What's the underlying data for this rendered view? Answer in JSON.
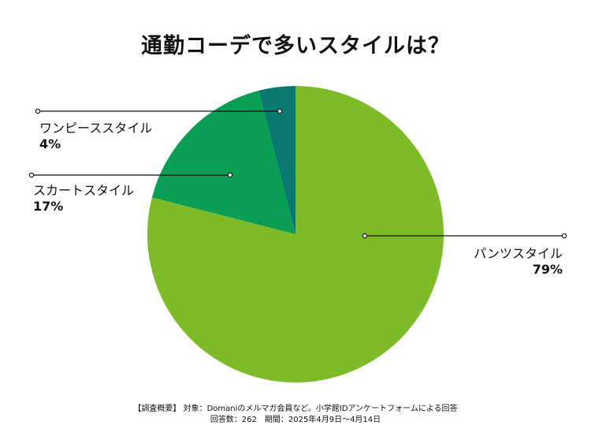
{
  "title": "通勤コーデで多いスタイルは？",
  "chart_data": {
    "type": "pie",
    "start": "top",
    "direction": "clockwise",
    "slices": [
      {
        "label": "パンツスタイル",
        "value": 79,
        "display": "79%",
        "color": "#7dbb28"
      },
      {
        "label": "スカートスタイル",
        "value": 17,
        "display": "17%",
        "color": "#0a9e55"
      },
      {
        "label": "ワンピーススタイル",
        "value": 4,
        "display": "4%",
        "color": "#0a7a6e"
      }
    ]
  },
  "footnote": {
    "line1": "【調査概要】 対象：Domaniのメルマガ会員など。小学館IDアンケートフォームによる回答",
    "line2": "回答数：262　期間：2025年4月9日～4月14日"
  }
}
